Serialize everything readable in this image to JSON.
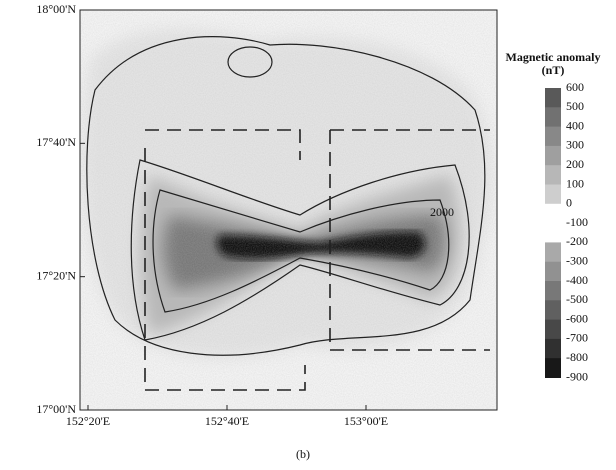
{
  "map": {
    "lat_labels": [
      "18°00'N",
      "17°40'N",
      "17°20'N",
      "17°00'N"
    ],
    "lon_labels": [
      "152°20'E",
      "152°40'E",
      "153°00'E"
    ],
    "contour_label": "2000"
  },
  "colorbar": {
    "title": "Magnetic anomaly",
    "unit": "(nT)",
    "ticks": [
      600,
      500,
      400,
      300,
      200,
      100,
      0,
      -100,
      -200,
      -300,
      -400,
      -500,
      -600,
      -700,
      -800,
      -900
    ]
  },
  "caption": "(b)"
}
